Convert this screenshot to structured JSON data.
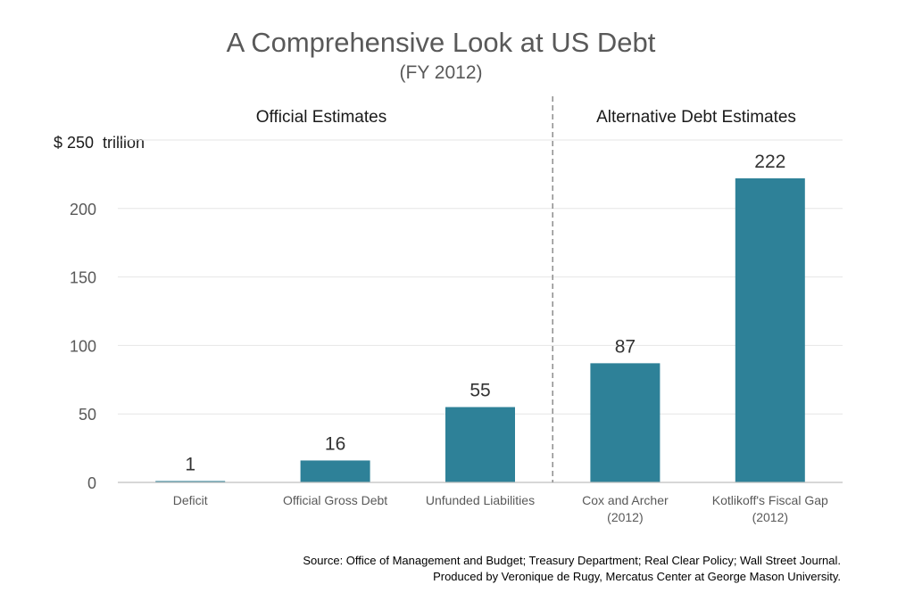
{
  "chart_data": {
    "type": "bar",
    "title": "A Comprehensive Look at US Debt",
    "subtitle": "(FY 2012)",
    "unit_label": "$ 250  trillion",
    "categories": [
      [
        "Deficit"
      ],
      [
        "Official Gross Debt"
      ],
      [
        "Unfunded Liabilities"
      ],
      [
        "Cox and Archer",
        "(2012)"
      ],
      [
        "Kotlikoff's Fiscal Gap",
        "(2012)"
      ]
    ],
    "values": [
      1,
      16,
      55,
      87,
      222
    ],
    "data_labels": [
      "1",
      "16",
      "55",
      "87",
      "222"
    ],
    "ylim": [
      0,
      250
    ],
    "yticks": [
      "0",
      "50",
      "100",
      "150",
      "200"
    ],
    "groups": [
      {
        "label": "Official Estimates",
        "categories": [
          0,
          1,
          2
        ]
      },
      {
        "label": "Alternative  Debt Estimates",
        "categories": [
          3,
          4
        ]
      }
    ],
    "bar_color": "#2e8198",
    "grid": true,
    "legend": "none"
  },
  "source": {
    "line1": "Source: Office of Management and Budget; Treasury Department; Real Clear Policy; Wall Street Journal.",
    "line2": "Produced by Veronique de Rugy, Mercatus Center at George Mason University."
  }
}
